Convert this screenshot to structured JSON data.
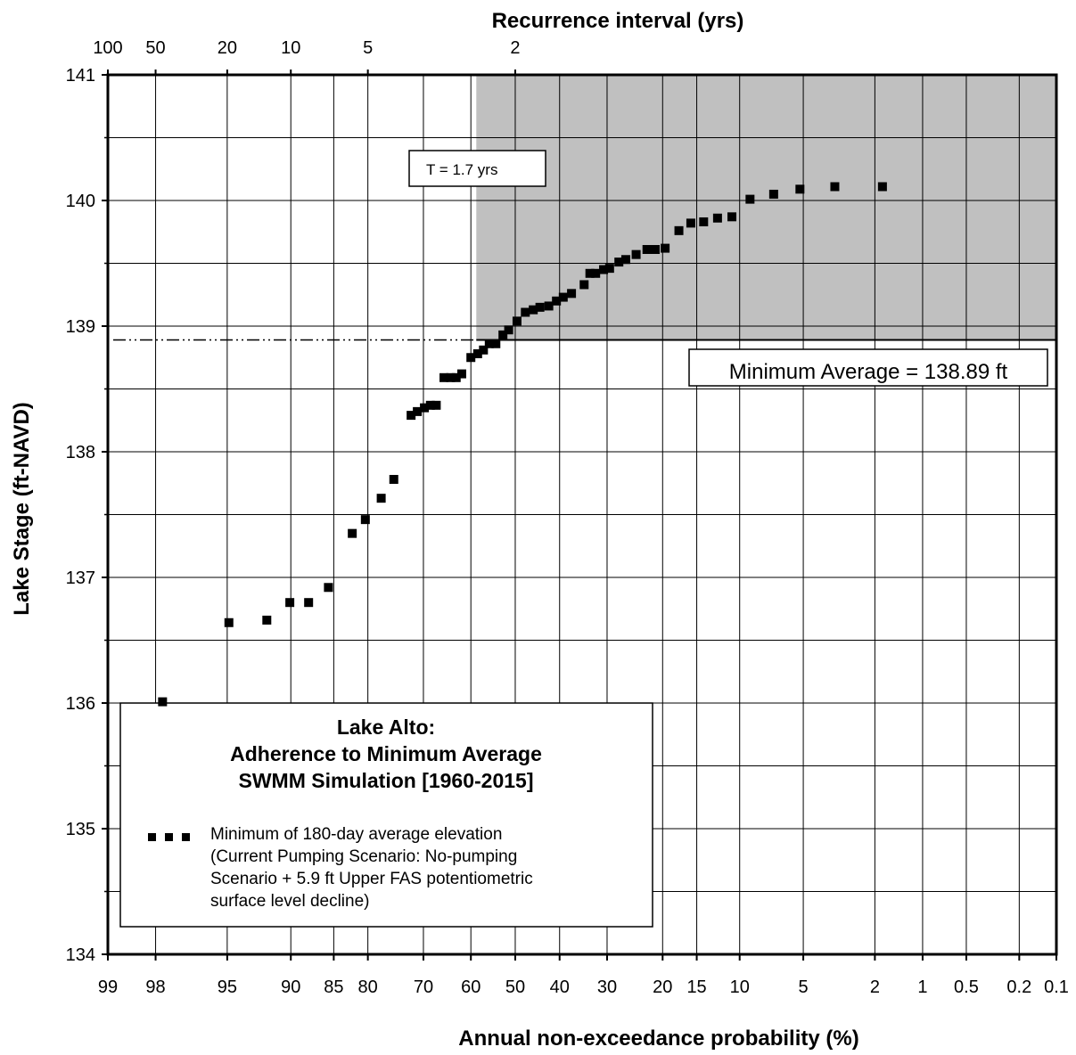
{
  "chart_data": {
    "type": "scatter",
    "title": "",
    "xlabel": "Annual non-exceedance probability (%)",
    "ylabel": "Lake Stage (ft-NAVD)",
    "top_axis_label": "Recurrence interval (yrs)",
    "x_scale": "normal-probability",
    "ylim": [
      134,
      141
    ],
    "grid": true,
    "x_ticks": [
      {
        "label": "99",
        "value": 99
      },
      {
        "label": "98",
        "value": 98
      },
      {
        "label": "95",
        "value": 95
      },
      {
        "label": "90",
        "value": 90
      },
      {
        "label": "85",
        "value": 85
      },
      {
        "label": "80",
        "value": 80
      },
      {
        "label": "70",
        "value": 70
      },
      {
        "label": "60",
        "value": 60
      },
      {
        "label": "50",
        "value": 50
      },
      {
        "label": "40",
        "value": 40
      },
      {
        "label": "30",
        "value": 30
      },
      {
        "label": "20",
        "value": 20
      },
      {
        "label": "15",
        "value": 15
      },
      {
        "label": "10",
        "value": 10
      },
      {
        "label": "5",
        "value": 5
      },
      {
        "label": "2",
        "value": 2
      },
      {
        "label": "1",
        "value": 1
      },
      {
        "label": "0.5",
        "value": 0.5
      },
      {
        "label": "0.2",
        "value": 0.2
      },
      {
        "label": "0.1",
        "value": 0.1
      }
    ],
    "top_ticks": [
      {
        "label": "2",
        "value": 2
      },
      {
        "label": "5",
        "value": 5
      },
      {
        "label": "10",
        "value": 10
      },
      {
        "label": "20",
        "value": 20
      },
      {
        "label": "50",
        "value": 50
      },
      {
        "label": "100",
        "value": 100
      }
    ],
    "y_ticks": [
      {
        "label": "134",
        "value": 134
      },
      {
        "label": "135",
        "value": 135
      },
      {
        "label": "136",
        "value": 136
      },
      {
        "label": "137",
        "value": 137
      },
      {
        "label": "138",
        "value": 138
      },
      {
        "label": "139",
        "value": 139
      },
      {
        "label": "140",
        "value": 140
      },
      {
        "label": "141",
        "value": 141
      }
    ],
    "series": [
      {
        "name": "Minimum of 180-day average elevation (Current Pumping Scenario: No-pumping Scenario + 5.9 ft Upper FAS potentiometric surface level decline)",
        "marker": "square",
        "color": "#000000",
        "points": [
          [
            98.2,
            140.11
          ],
          [
            96.6,
            140.11
          ],
          [
            94.8,
            140.09
          ],
          [
            93.0,
            140.05
          ],
          [
            91.0,
            140.01
          ],
          [
            89.2,
            139.87
          ],
          [
            87.6,
            139.86
          ],
          [
            85.9,
            139.83
          ],
          [
            84.2,
            139.82
          ],
          [
            82.5,
            139.76
          ],
          [
            80.4,
            139.62
          ],
          [
            78.8,
            139.61
          ],
          [
            77.4,
            139.61
          ],
          [
            75.5,
            139.57
          ],
          [
            73.6,
            139.53
          ],
          [
            72.3,
            139.51
          ],
          [
            70.5,
            139.46
          ],
          [
            69.3,
            139.45
          ],
          [
            67.7,
            139.42
          ],
          [
            66.5,
            139.42
          ],
          [
            65.3,
            139.33
          ],
          [
            62.6,
            139.26
          ],
          [
            60.8,
            139.23
          ],
          [
            59.3,
            139.2
          ],
          [
            57.6,
            139.16
          ],
          [
            55.6,
            139.15
          ],
          [
            54.1,
            139.13
          ],
          [
            52.3,
            139.11
          ],
          [
            50.4,
            139.04
          ],
          [
            48.5,
            138.97
          ],
          [
            47.2,
            138.93
          ],
          [
            45.6,
            138.86
          ],
          [
            44.1,
            138.86
          ],
          [
            42.8,
            138.81
          ],
          [
            41.5,
            138.78
          ],
          [
            40.0,
            138.75
          ],
          [
            38.0,
            138.62
          ],
          [
            36.8,
            138.59
          ],
          [
            35.6,
            138.59
          ],
          [
            34.2,
            138.59
          ],
          [
            32.6,
            138.37
          ],
          [
            31.4,
            138.37
          ],
          [
            30.2,
            138.35
          ],
          [
            28.8,
            138.32
          ],
          [
            27.6,
            138.29
          ],
          [
            24.4,
            137.78
          ],
          [
            22.2,
            137.63
          ],
          [
            19.6,
            137.46
          ],
          [
            17.6,
            137.35
          ],
          [
            14.3,
            136.92
          ],
          [
            11.9,
            136.8
          ],
          [
            9.9,
            136.8
          ],
          [
            7.8,
            136.66
          ],
          [
            5.1,
            136.64
          ],
          [
            2.2,
            136.01
          ]
        ]
      }
    ],
    "annotations": {
      "t_label": "T = 1.7 yrs",
      "threshold_label": "Minimum  Average = 138.89 ft",
      "threshold_value": 138.89,
      "shaded_region": {
        "x_from": 58.8,
        "x_to": 0.1,
        "y_from": 138.89,
        "y_to": 141,
        "color": "#c0c0c0"
      }
    },
    "legend": {
      "placement": "bottom-left",
      "title_lines": [
        "Lake Alto:",
        "Adherence to Minimum  Average",
        "SWMM Simulation  [1960-2015]"
      ],
      "entry_lines": [
        "Minimum of 180-day average elevation",
        "(Current Pumping Scenario: No-pumping",
        "Scenario + 5.9 ft Upper FAS potentiometric",
        "surface level decline)"
      ]
    }
  }
}
